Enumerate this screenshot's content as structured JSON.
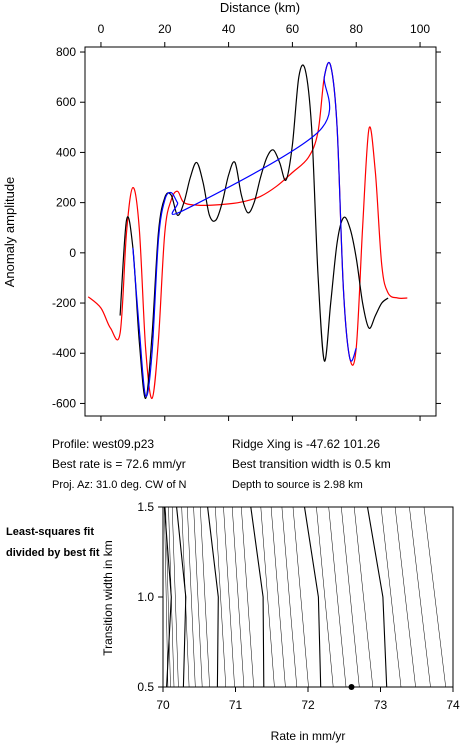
{
  "profile_plot": {
    "x_axis_title": "Distance (km)",
    "y_axis_title": "Anomaly amplitude",
    "x_ticks": [
      0,
      20,
      40,
      60,
      80,
      100
    ],
    "y_ticks": [
      -600,
      -400,
      -200,
      0,
      200,
      400,
      600,
      800
    ]
  },
  "info": {
    "profile": "Profile: west09.p23",
    "best_rate": "Best rate is = 72.6 mm/yr",
    "proj_az": "Proj. Az: 31.0 deg. CW of N",
    "ridge_xing": "Ridge Xing is -47.62 101.26",
    "best_transition": "Best transition width is 0.5 km",
    "depth_to_source": "Depth to source is    2.98 km"
  },
  "contour_plot": {
    "legend_note": "Least-squares fit divided by best fit",
    "x_axis_title": "Rate in mm/yr",
    "y_axis_title": "Transition width in km",
    "x_ticks": [
      "70",
      "71",
      "72",
      "73",
      "74"
    ],
    "y_ticks": [
      "0.5",
      "1.0",
      "1.5"
    ]
  },
  "chart_data": [
    {
      "type": "line",
      "xlim": [
        -5,
        105
      ],
      "ylim": [
        -650,
        820
      ],
      "xlabel": "Distance (km)",
      "ylabel": "Anomaly amplitude",
      "grid": false,
      "series": [
        {
          "color": "#ff0000",
          "x": [
            -4,
            0,
            3,
            6,
            8,
            10,
            12,
            14,
            16,
            18,
            20,
            22,
            24,
            26,
            30,
            35,
            40,
            45,
            50,
            55,
            60,
            65,
            68,
            70,
            72,
            74,
            76,
            78,
            80,
            82,
            84,
            86,
            88,
            90,
            93,
            96
          ],
          "y": [
            -175,
            -220,
            -300,
            -320,
            80,
            260,
            100,
            -380,
            -580,
            -350,
            80,
            210,
            245,
            200,
            190,
            190,
            195,
            205,
            225,
            265,
            320,
            380,
            480,
            700,
            745,
            500,
            -150,
            -420,
            -380,
            100,
            495,
            320,
            -50,
            -160,
            -180,
            -180
          ]
        },
        {
          "color": "#000000",
          "x": [
            6,
            8,
            10,
            12,
            14,
            16,
            18,
            20,
            22,
            24,
            26,
            28,
            30,
            32,
            34,
            36,
            38,
            40,
            42,
            44,
            46,
            48,
            50,
            52,
            54,
            56,
            58,
            60,
            62,
            64,
            66,
            68,
            70,
            72,
            74,
            76,
            78,
            80,
            82,
            84,
            86,
            88,
            90
          ],
          "y": [
            -250,
            130,
            20,
            -350,
            -580,
            -330,
            80,
            220,
            230,
            150,
            200,
            300,
            360,
            280,
            150,
            130,
            200,
            310,
            360,
            230,
            160,
            200,
            300,
            380,
            410,
            360,
            290,
            430,
            700,
            730,
            500,
            -80,
            -430,
            -200,
            40,
            140,
            100,
            -20,
            -200,
            -300,
            -250,
            -200,
            -180
          ]
        },
        {
          "color": "#0000ff",
          "x": [
            10,
            12,
            14,
            16,
            18,
            20,
            22,
            24,
            26,
            68,
            70,
            72,
            74,
            76,
            78,
            80
          ],
          "y": [
            20,
            -300,
            -570,
            -400,
            50,
            210,
            240,
            200,
            170,
            480,
            700,
            745,
            500,
            -150,
            -420,
            -380
          ]
        }
      ]
    },
    {
      "type": "line",
      "title": "",
      "xlabel": "Rate in mm/yr",
      "ylabel": "Transition width in km",
      "xlim": [
        70,
        74
      ],
      "ylim": [
        0.5,
        1.5
      ],
      "best_fit_point": {
        "x": 72.6,
        "y": 0.5
      },
      "contour_count": 30
    }
  ]
}
